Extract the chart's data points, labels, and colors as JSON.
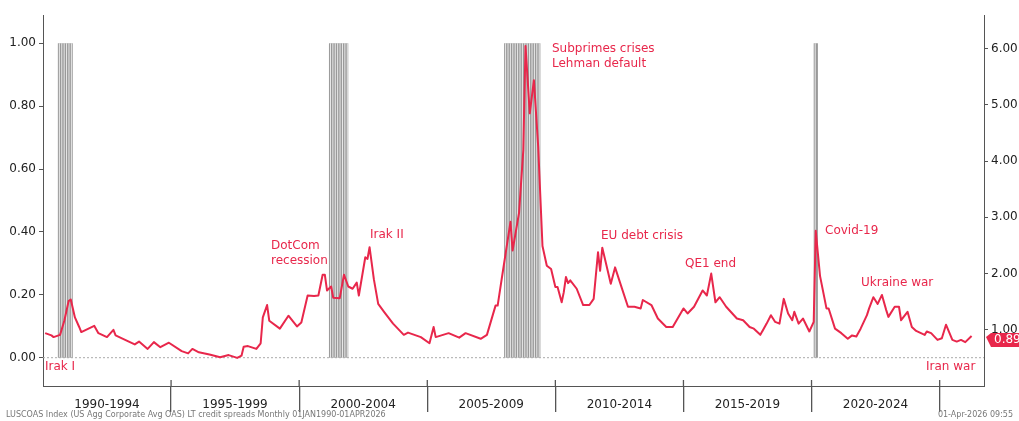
{
  "chart_data": {
    "type": "line",
    "x": [
      "1990-02",
      "1990-05",
      "1990-06",
      "1990-09",
      "1990-11",
      "1991-01",
      "1991-02",
      "1991-04",
      "1991-06",
      "1991-07",
      "1992-01",
      "1992-03",
      "1992-07",
      "1992-10",
      "1992-11",
      "1993-04",
      "1993-08",
      "1993-10",
      "1994-02",
      "1994-05",
      "1994-08",
      "1994-12",
      "1995-06",
      "1995-09",
      "1995-11",
      "1996-02",
      "1996-07",
      "1996-12",
      "1997-04",
      "1997-08",
      "1997-10",
      "1997-11",
      "1998-01",
      "1998-05",
      "1998-07",
      "1998-08",
      "1998-10",
      "1998-11",
      "1999-04",
      "1999-08",
      "1999-12",
      "2000-02",
      "2000-05",
      "2000-08",
      "2000-10",
      "2000-12",
      "2001-01",
      "2001-02",
      "2001-04",
      "2001-05",
      "2001-08",
      "2001-10",
      "2001-12",
      "2002-02",
      "2002-04",
      "2002-05",
      "2002-08",
      "2002-09",
      "2002-10",
      "2002-12",
      "2003-02",
      "2003-05",
      "2003-09",
      "2004-02",
      "2004-04",
      "2004-10",
      "2005-02",
      "2005-04",
      "2005-05",
      "2005-11",
      "2006-04",
      "2006-07",
      "2007-02",
      "2007-05",
      "2007-09",
      "2007-10",
      "2007-12",
      "2008-04",
      "2008-05",
      "2008-08",
      "2008-10",
      "2008-11",
      "2009-01",
      "2009-03",
      "2009-05",
      "2009-07",
      "2009-09",
      "2009-11",
      "2010-01",
      "2010-02",
      "2010-04",
      "2010-05",
      "2010-06",
      "2010-07",
      "2010-08",
      "2010-11",
      "2011-02",
      "2011-05",
      "2011-07",
      "2011-09",
      "2011-10",
      "2011-11",
      "2012-03",
      "2012-05",
      "2012-08",
      "2012-11",
      "2013-02",
      "2013-05",
      "2013-06",
      "2013-10",
      "2014-01",
      "2014-05",
      "2014-08",
      "2015-01",
      "2015-03",
      "2015-06",
      "2015-10",
      "2015-12",
      "2016-02",
      "2016-04",
      "2016-06",
      "2016-09",
      "2017-02",
      "2017-05",
      "2017-08",
      "2017-10",
      "2018-01",
      "2018-04",
      "2018-06",
      "2018-08",
      "2018-10",
      "2018-12",
      "2019-02",
      "2019-04",
      "2019-05",
      "2019-07",
      "2019-09",
      "2019-12",
      "2020-02",
      "2020-03",
      "2020-05",
      "2020-08",
      "2020-09",
      "2020-12",
      "2021-03",
      "2021-06",
      "2021-08",
      "2021-10",
      "2021-12",
      "2022-03",
      "2022-04",
      "2022-06",
      "2022-08",
      "2022-10",
      "2022-12",
      "2023-01",
      "2023-04",
      "2023-06",
      "2023-07",
      "2023-10",
      "2023-12",
      "2024-02",
      "2024-06",
      "2024-07",
      "2024-09",
      "2024-12",
      "2025-02",
      "2025-04",
      "2025-07",
      "2025-09",
      "2025-11",
      "2026-01",
      "2026-04"
    ],
    "series": [
      {
        "color": "#e8274b",
        "axis": "y2",
        "values": [
          0.94,
          0.9,
          0.87,
          0.91,
          1.16,
          1.51,
          1.54,
          1.22,
          1.05,
          0.96,
          1.07,
          0.94,
          0.87,
          1.0,
          0.9,
          0.81,
          0.74,
          0.79,
          0.66,
          0.78,
          0.69,
          0.77,
          0.62,
          0.58,
          0.66,
          0.6,
          0.56,
          0.51,
          0.55,
          0.5,
          0.54,
          0.7,
          0.71,
          0.66,
          0.76,
          1.22,
          1.44,
          1.16,
          1.02,
          1.25,
          1.06,
          1.13,
          1.61,
          1.6,
          1.61,
          1.98,
          1.98,
          1.7,
          1.77,
          1.57,
          1.56,
          1.98,
          1.77,
          1.73,
          1.84,
          1.61,
          2.29,
          2.26,
          2.47,
          1.9,
          1.46,
          1.31,
          1.11,
          0.91,
          0.95,
          0.87,
          0.76,
          1.05,
          0.87,
          0.94,
          0.86,
          0.94,
          0.84,
          0.91,
          1.43,
          1.43,
          1.93,
          2.92,
          2.41,
          3.08,
          4.2,
          6.05,
          4.85,
          5.44,
          4.26,
          2.49,
          2.14,
          2.08,
          1.76,
          1.76,
          1.49,
          1.67,
          1.94,
          1.83,
          1.88,
          1.73,
          1.44,
          1.44,
          1.55,
          2.38,
          2.05,
          2.46,
          1.82,
          2.11,
          1.76,
          1.41,
          1.41,
          1.38,
          1.53,
          1.44,
          1.2,
          1.05,
          1.05,
          1.38,
          1.29,
          1.41,
          1.7,
          1.61,
          2.0,
          1.49,
          1.58,
          1.41,
          1.2,
          1.17,
          1.05,
          1.02,
          0.91,
          1.11,
          1.26,
          1.14,
          1.11,
          1.55,
          1.29,
          1.17,
          1.32,
          1.11,
          1.2,
          0.97,
          1.14,
          2.76,
          1.96,
          1.38,
          1.38,
          1.02,
          0.94,
          0.84,
          0.9,
          0.88,
          1.02,
          1.26,
          1.38,
          1.58,
          1.46,
          1.62,
          1.35,
          1.23,
          1.41,
          1.41,
          1.17,
          1.32,
          1.05,
          0.98,
          0.91,
          0.97,
          0.94,
          0.82,
          0.85,
          1.09,
          0.82,
          0.79,
          0.82,
          0.78,
          0.89
        ],
        "value_labels": [
          null,
          null,
          null,
          null,
          null,
          null,
          null,
          null,
          null,
          null,
          null,
          null,
          null,
          null,
          null,
          null,
          null,
          null,
          null,
          null,
          null,
          null,
          null,
          null,
          null,
          null,
          null,
          null,
          null,
          null,
          null,
          null,
          null,
          null,
          null,
          null,
          null,
          null,
          null,
          null,
          null,
          null,
          null,
          null,
          null,
          null,
          null,
          null,
          null,
          null,
          null,
          null,
          null,
          null,
          null,
          null,
          null,
          null,
          null,
          null,
          null,
          null,
          null,
          null,
          null,
          null,
          null,
          null,
          null,
          null,
          null,
          null,
          null,
          null,
          null,
          null,
          null,
          null,
          null,
          null,
          null,
          null,
          null,
          null,
          null,
          null,
          null,
          null,
          null,
          null,
          null,
          null,
          null,
          null,
          null,
          null,
          null,
          null,
          null,
          null,
          null,
          null,
          null,
          null,
          null,
          null,
          null,
          null,
          null,
          null,
          null,
          null,
          null,
          null,
          null,
          null,
          null,
          null,
          null,
          null,
          null,
          null,
          null,
          null,
          null,
          null,
          null,
          null,
          null,
          null,
          null,
          null,
          null,
          null,
          null,
          null,
          null,
          null,
          null,
          null,
          null,
          null,
          null,
          null,
          null,
          null,
          null,
          null,
          null,
          null,
          null,
          null,
          null,
          null,
          null,
          null,
          null,
          null,
          null,
          null,
          null,
          null,
          null,
          null,
          null,
          null,
          null,
          null,
          null,
          null,
          null,
          null,
          "0.89"
        ]
      }
    ],
    "xlim": [
      "1990-01",
      "2026-09-25"
    ],
    "xticks": [
      {
        "value": "1992-07",
        "label": "1990-1994"
      },
      {
        "value": "1995-01",
        "label": null
      },
      {
        "value": "1997-07",
        "label": "1995-1999"
      },
      {
        "value": "2000-01",
        "label": null
      },
      {
        "value": "2002-07",
        "label": "2000-2004"
      },
      {
        "value": "2005-01",
        "label": null
      },
      {
        "value": "2007-07",
        "label": "2005-2009"
      },
      {
        "value": "2010-01",
        "label": null
      },
      {
        "value": "2012-07",
        "label": "2010-2014"
      },
      {
        "value": "2015-01",
        "label": null
      },
      {
        "value": "2017-07",
        "label": "2015-2019"
      },
      {
        "value": "2020-01",
        "label": null
      },
      {
        "value": "2022-07",
        "label": "2020-2024"
      },
      {
        "value": "2025-01",
        "label": null
      }
    ],
    "ylim": [
      -0.09,
      1.09
    ],
    "yticks": [
      {
        "value": 0,
        "label": "0.00"
      },
      {
        "value": 0.2,
        "label": "0.20"
      },
      {
        "value": 0.4,
        "label": "0.40"
      },
      {
        "value": 0.6,
        "label": "0.60"
      },
      {
        "value": 0.8,
        "label": "0.80"
      },
      {
        "value": 1,
        "label": "1.00"
      }
    ],
    "y2lim": [
      0,
      6.6
    ],
    "y2ticks": [
      {
        "value": 1,
        "label": "1.00"
      },
      {
        "value": 2,
        "label": "2.00"
      },
      {
        "value": 3,
        "label": "3.00"
      },
      {
        "value": 4,
        "label": "4.00"
      },
      {
        "value": 5,
        "label": "5.00"
      },
      {
        "value": 6,
        "label": "6.00"
      }
    ],
    "ref_lines": [
      {
        "axis": "y",
        "value": 0,
        "color": "#aaaaaa",
        "line_style": "dotted"
      }
    ],
    "bands": [
      {
        "axis": "x",
        "from": "1990-08",
        "to": "1991-03",
        "color": "#999999"
      },
      {
        "axis": "x",
        "from": "2001-03",
        "to": "2001-12",
        "color": "#999999"
      },
      {
        "axis": "x",
        "from": "2008-01",
        "to": "2009-06",
        "color": "#999999"
      },
      {
        "axis": "x",
        "from": "2020-02",
        "to": "2020-04",
        "color": "#999999"
      }
    ],
    "annotations": [
      "Irak I",
      "DotCom\nrecession",
      "Irak II",
      "Subprimes crises\nLehman default",
      "EU debt crisis",
      "QE1 end",
      "Covid-19",
      "Ukraine war",
      "Iran war",
      "LUSCOAS Index (US Agg Corporate Avg OAS) LT credit spreads Monthly 01JAN1990-01APR2026",
      "01-Apr-2026 09:55"
    ],
    "grid": false,
    "legend": false,
    "marker": "none",
    "line_style": "solid"
  }
}
